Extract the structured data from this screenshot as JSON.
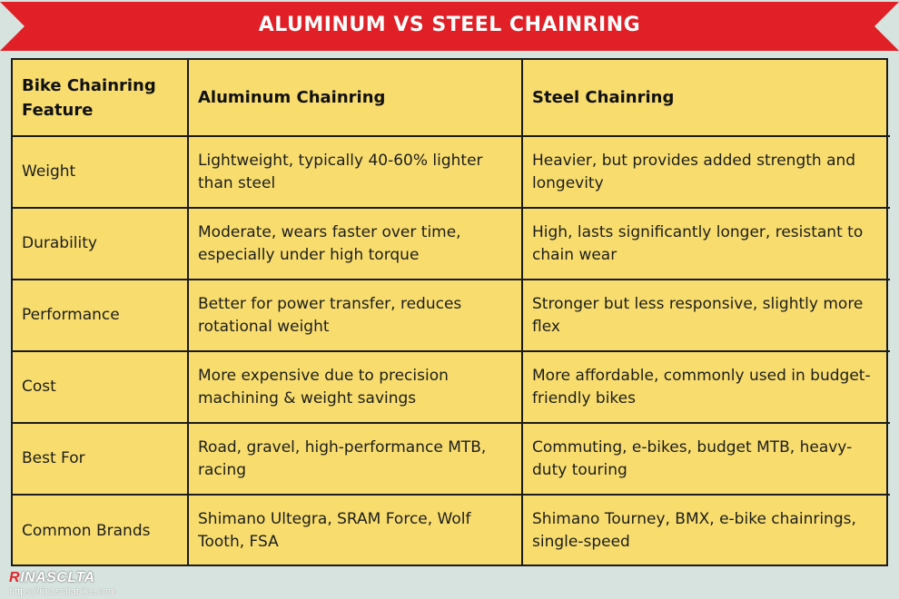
{
  "banner": {
    "title": "ALUMINUM VS STEEL CHAINRING",
    "color": "#e01f26"
  },
  "table": {
    "headers": [
      "Bike Chainring Feature",
      "Aluminum Chainring",
      "Steel Chainring"
    ],
    "rows": [
      {
        "feature": "Weight",
        "aluminum": "Lightweight, typically 40-60% lighter than steel",
        "steel": "Heavier, but provides added strength and longevity"
      },
      {
        "feature": "Durability",
        "aluminum": "Moderate, wears faster over time, especially under high torque",
        "steel": "High, lasts significantly longer, resistant to chain wear"
      },
      {
        "feature": "Performance",
        "aluminum": "Better for power transfer, reduces rotational weight",
        "steel": "Stronger but less responsive, slightly more flex"
      },
      {
        "feature": "Cost",
        "aluminum": "More expensive due to precision machining & weight savings",
        "steel": "More affordable, commonly used in budget-friendly bikes"
      },
      {
        "feature": "Best For",
        "aluminum": "Road, gravel, high-performance MTB, racing",
        "steel": "Commuting, e-bikes, budget MTB, heavy-duty touring"
      },
      {
        "feature": "Common Brands",
        "aluminum": "Shimano Ultegra, SRAM Force, Wolf Tooth, FSA",
        "steel": "Shimano Tourney, BMX, e-bike chainrings, single-speed"
      }
    ],
    "background": "#f8dd6e"
  },
  "footer": {
    "logo_initial": "R",
    "logo_rest": "INASCLTA",
    "url": "https://rinascltabike.com"
  }
}
